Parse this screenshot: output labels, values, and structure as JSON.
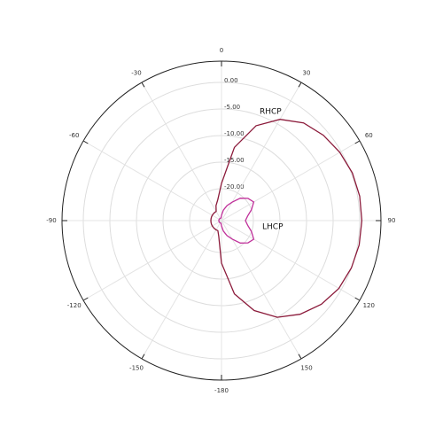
{
  "chart_data": {
    "type": "polar",
    "theta": [
      -180,
      -170,
      -160,
      -150,
      -140,
      -130,
      -120,
      -110,
      -100,
      -90,
      -80,
      -70,
      -60,
      -50,
      -40,
      -30,
      -20,
      -10,
      0,
      10,
      20,
      30,
      40,
      50,
      60,
      70,
      80,
      90,
      100,
      110,
      120,
      130,
      140,
      150,
      160,
      170,
      180
    ],
    "series": [
      {
        "name": "RHCP",
        "color": "#8b1a3a",
        "values": [
          -18,
          -23,
          -24,
          -24,
          -24,
          -24,
          -24,
          -24,
          -24,
          -24,
          -24,
          -24,
          -24,
          -24,
          -24,
          -24,
          -23,
          -22,
          -19,
          -12,
          -7,
          -4,
          -2,
          -1,
          -0.3,
          0.2,
          0.4,
          0.4,
          0.3,
          0,
          -0.5,
          -1.5,
          -3,
          -5,
          -8,
          -12,
          -18
        ]
      },
      {
        "name": "LHCP",
        "color": "#c0309a",
        "values": [
          -25,
          -25.5,
          -25.5,
          -25.5,
          -25.5,
          -25.5,
          -25.5,
          -25.5,
          -25.5,
          -25.5,
          -25.5,
          -25.5,
          -25.5,
          -25.5,
          -25.5,
          -25.5,
          -25.5,
          -25.5,
          -25,
          -24,
          -23,
          -22,
          -20.5,
          -19.5,
          -19,
          -20,
          -21,
          -21.5,
          -21,
          -20,
          -19,
          -19.5,
          -20.5,
          -22,
          -23,
          -24,
          -25
        ]
      }
    ],
    "rlim": [
      -26,
      4
    ],
    "rticks": [
      {
        "value": 0,
        "label": "0.00"
      },
      {
        "value": -5,
        "label": "-5.00"
      },
      {
        "value": -10,
        "label": "-10.00"
      },
      {
        "value": -15,
        "label": "-15.00"
      },
      {
        "value": -20,
        "label": "-20.00"
      }
    ],
    "thetaticks": [
      0,
      30,
      60,
      90,
      120,
      150,
      {
        "value": 180,
        "label": "-180"
      },
      -150,
      -120,
      -90,
      -60,
      -30
    ],
    "grid": true
  }
}
